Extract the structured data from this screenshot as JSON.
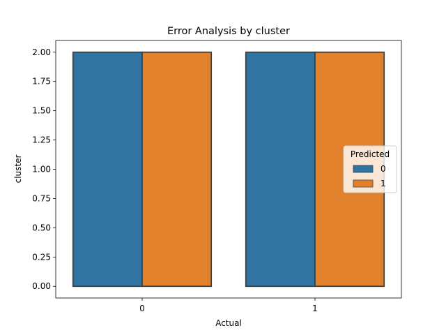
{
  "chart_data": {
    "type": "bar",
    "title": "Error Analysis by cluster",
    "xlabel": "Actual",
    "ylabel": "cluster",
    "categories": [
      "0",
      "1"
    ],
    "series": [
      {
        "name": "0",
        "color": "#3274a1",
        "values": [
          2.0,
          2.0
        ]
      },
      {
        "name": "1",
        "color": "#e1812c",
        "values": [
          2.0,
          2.0
        ]
      }
    ],
    "ylim": [
      -0.1,
      2.1
    ],
    "yticks": [
      0.0,
      0.25,
      0.5,
      0.75,
      1.0,
      1.25,
      1.5,
      1.75,
      2.0
    ],
    "ytick_labels": [
      "0.00",
      "0.25",
      "0.50",
      "0.75",
      "1.00",
      "1.25",
      "1.50",
      "1.75",
      "2.00"
    ],
    "grid": false,
    "legend": {
      "title": "Predicted",
      "placement": "center-right"
    },
    "edge_color": "#3f3f3f"
  }
}
